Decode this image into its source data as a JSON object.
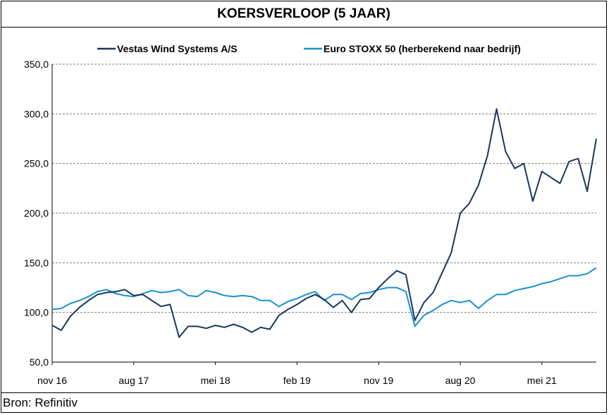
{
  "header": {
    "title": "KOERSVERLOOP (5 JAAR)"
  },
  "footer": {
    "source": "Bron: Refinitiv"
  },
  "chart_data": {
    "type": "line",
    "title": "KOERSVERLOOP (5 JAAR)",
    "xlabel": "",
    "ylabel": "",
    "ylim": [
      50,
      350
    ],
    "yticks": [
      "50,0",
      "100,0",
      "150,0",
      "200,0",
      "250,0",
      "300,0",
      "350,0"
    ],
    "ytick_values": [
      50,
      100,
      150,
      200,
      250,
      300,
      350
    ],
    "xtick_labels": [
      "nov 16",
      "aug 17",
      "mei 18",
      "feb 19",
      "nov 19",
      "aug 20",
      "mei 21"
    ],
    "x_start": "2016-11",
    "x_end": "2021-11",
    "grid": "horizontal-dashed",
    "legend_position": "top",
    "colors": {
      "vestas": "#17375e",
      "stoxx": "#1a91cc",
      "grid": "#808080"
    },
    "series": [
      {
        "name": "Vestas Wind Systems A/S",
        "x": [
          "2016-11",
          "2016-12",
          "2017-01",
          "2017-02",
          "2017-03",
          "2017-04",
          "2017-05",
          "2017-06",
          "2017-07",
          "2017-08",
          "2017-09",
          "2017-10",
          "2017-11",
          "2017-12",
          "2018-01",
          "2018-02",
          "2018-03",
          "2018-04",
          "2018-05",
          "2018-06",
          "2018-07",
          "2018-08",
          "2018-09",
          "2018-10",
          "2018-11",
          "2018-12",
          "2019-01",
          "2019-02",
          "2019-03",
          "2019-04",
          "2019-05",
          "2019-06",
          "2019-07",
          "2019-08",
          "2019-09",
          "2019-10",
          "2019-11",
          "2019-12",
          "2020-01",
          "2020-02",
          "2020-03",
          "2020-04",
          "2020-05",
          "2020-06",
          "2020-07",
          "2020-08",
          "2020-09",
          "2020-10",
          "2020-11",
          "2020-12",
          "2021-01",
          "2021-02",
          "2021-03",
          "2021-04",
          "2021-05",
          "2021-06",
          "2021-07",
          "2021-08",
          "2021-09",
          "2021-10",
          "2021-11"
        ],
        "values": [
          87,
          82,
          96,
          105,
          112,
          118,
          120,
          121,
          123,
          117,
          118,
          112,
          106,
          108,
          75,
          86,
          86,
          84,
          87,
          85,
          88,
          85,
          80,
          85,
          83,
          97,
          103,
          108,
          114,
          118,
          113,
          105,
          112,
          100,
          113,
          114,
          125,
          134,
          142,
          138,
          92,
          110,
          120,
          140,
          160,
          200,
          210,
          228,
          258,
          305,
          262,
          245,
          250,
          212,
          242,
          236,
          230,
          252,
          255,
          222,
          275
        ]
      },
      {
        "name": "Euro STOXX 50 (herberekend naar bedrijf)",
        "x": [
          "2016-11",
          "2016-12",
          "2017-01",
          "2017-02",
          "2017-03",
          "2017-04",
          "2017-05",
          "2017-06",
          "2017-07",
          "2017-08",
          "2017-09",
          "2017-10",
          "2017-11",
          "2017-12",
          "2018-01",
          "2018-02",
          "2018-03",
          "2018-04",
          "2018-05",
          "2018-06",
          "2018-07",
          "2018-08",
          "2018-09",
          "2018-10",
          "2018-11",
          "2018-12",
          "2019-01",
          "2019-02",
          "2019-03",
          "2019-04",
          "2019-05",
          "2019-06",
          "2019-07",
          "2019-08",
          "2019-09",
          "2019-10",
          "2019-11",
          "2019-12",
          "2020-01",
          "2020-02",
          "2020-03",
          "2020-04",
          "2020-05",
          "2020-06",
          "2020-07",
          "2020-08",
          "2020-09",
          "2020-10",
          "2020-11",
          "2020-12",
          "2021-01",
          "2021-02",
          "2021-03",
          "2021-04",
          "2021-05",
          "2021-06",
          "2021-07",
          "2021-08",
          "2021-09",
          "2021-10",
          "2021-11"
        ],
        "values": [
          103,
          104,
          109,
          112,
          116,
          121,
          123,
          119,
          117,
          116,
          119,
          122,
          120,
          121,
          123,
          117,
          116,
          122,
          120,
          117,
          116,
          117,
          116,
          112,
          112,
          106,
          111,
          114,
          118,
          121,
          112,
          118,
          118,
          113,
          119,
          120,
          123,
          125,
          125,
          121,
          86,
          97,
          102,
          108,
          112,
          110,
          112,
          104,
          112,
          118,
          118,
          122,
          124,
          126,
          129,
          131,
          134,
          137,
          137,
          139,
          145
        ]
      }
    ]
  }
}
